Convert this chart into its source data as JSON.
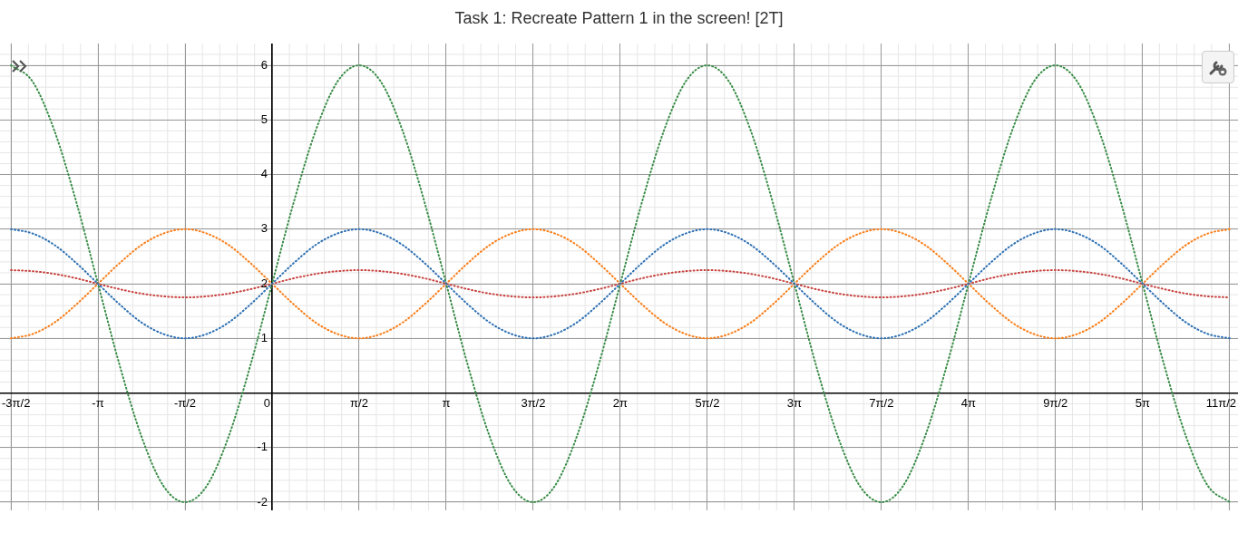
{
  "chart_data": {
    "type": "line",
    "title": "Task 1: Recreate Pattern 1 in the screen! [2T]",
    "x": [
      -4.712,
      -4.32,
      -3.927,
      -3.534,
      -3.142,
      -2.749,
      -2.356,
      -1.963,
      -1.571,
      -1.178,
      -0.785,
      -0.393,
      0,
      0.393,
      0.785,
      1.178,
      1.571,
      1.963,
      2.356,
      2.749,
      3.142,
      3.534,
      3.927,
      4.32,
      4.712,
      5.105,
      5.498,
      5.89,
      6.283,
      6.676,
      7.069,
      7.461,
      7.854,
      8.247,
      8.639,
      9.032,
      9.425,
      9.817,
      10.21,
      10.603,
      10.996,
      11.388,
      11.781,
      12.174,
      12.566,
      12.959,
      13.352,
      13.744,
      14.137,
      14.53,
      14.923,
      15.315,
      15.708,
      16.101,
      16.493,
      16.886,
      17.279
    ],
    "series": [
      {
        "color": "#2d70b3",
        "values": [
          3,
          2.92,
          2.71,
          2.38,
          2,
          1.62,
          1.29,
          1.08,
          1,
          1.08,
          1.29,
          1.62,
          2,
          2.38,
          2.71,
          2.92,
          3,
          2.92,
          2.71,
          2.38,
          2,
          1.62,
          1.29,
          1.08,
          1,
          1.08,
          1.29,
          1.62,
          2,
          2.38,
          2.71,
          2.92,
          3,
          2.92,
          2.71,
          2.38,
          2,
          1.62,
          1.29,
          1.08,
          1,
          1.08,
          1.29,
          1.62,
          2,
          2.38,
          2.71,
          2.92,
          3,
          2.92,
          2.71,
          2.38,
          2,
          1.62,
          1.29,
          1.08,
          1
        ]
      },
      {
        "color": "#fa7e19",
        "values": [
          1,
          1.08,
          1.29,
          1.62,
          2,
          2.38,
          2.71,
          2.92,
          3,
          2.92,
          2.71,
          2.38,
          2,
          1.62,
          1.29,
          1.08,
          1,
          1.08,
          1.29,
          1.62,
          2,
          2.38,
          2.71,
          2.92,
          3,
          2.92,
          2.71,
          2.38,
          2,
          1.62,
          1.29,
          1.08,
          1,
          1.08,
          1.29,
          1.62,
          2,
          2.38,
          2.71,
          2.92,
          3,
          2.92,
          2.71,
          2.38,
          2,
          1.62,
          1.29,
          1.08,
          1,
          1.08,
          1.29,
          1.62,
          2,
          2.38,
          2.71,
          2.92,
          3
        ]
      },
      {
        "color": "#388c46",
        "values": [
          6,
          5.7,
          4.8,
          3.5,
          2,
          0.5,
          -0.8,
          -1.7,
          -2,
          -1.7,
          -0.8,
          0.5,
          2,
          3.5,
          4.8,
          5.7,
          6,
          5.7,
          4.8,
          3.5,
          2,
          0.5,
          -0.8,
          -1.7,
          -2,
          -1.7,
          -0.8,
          0.5,
          2,
          3.5,
          4.8,
          5.7,
          6,
          5.7,
          4.8,
          3.5,
          2,
          0.5,
          -0.8,
          -1.7,
          -2,
          -1.7,
          -0.8,
          0.5,
          2,
          3.5,
          4.8,
          5.7,
          6,
          5.7,
          4.8,
          3.5,
          2,
          0.5,
          -0.8,
          -1.7,
          -2
        ]
      },
      {
        "color": "#c74440",
        "values": [
          2.25,
          2.23,
          2.18,
          2.1,
          2,
          1.9,
          1.82,
          1.77,
          1.75,
          1.77,
          1.82,
          1.9,
          2,
          2.1,
          2.18,
          2.23,
          2.25,
          2.23,
          2.18,
          2.1,
          2,
          1.9,
          1.82,
          1.77,
          1.75,
          1.77,
          1.82,
          1.9,
          2,
          2.1,
          2.18,
          2.23,
          2.25,
          2.23,
          2.18,
          2.1,
          2,
          1.9,
          1.82,
          1.77,
          1.75,
          1.77,
          1.82,
          1.9,
          2,
          2.1,
          2.18,
          2.23,
          2.25,
          2.23,
          2.18,
          2.1,
          2,
          1.9,
          1.82,
          1.77,
          1.75
        ]
      }
    ],
    "xlim": [
      -4.91,
      17.43
    ],
    "xticks": [
      {
        "value": -4.712,
        "label": "-3π/2"
      },
      {
        "value": -3.142,
        "label": "-π"
      },
      {
        "value": -1.571,
        "label": "-π/2"
      },
      0,
      {
        "value": 1.571,
        "label": "π/2"
      },
      {
        "value": 3.142,
        "label": "π"
      },
      {
        "value": 4.712,
        "label": "3π/2"
      },
      {
        "value": 6.283,
        "label": "2π"
      },
      {
        "value": 7.854,
        "label": "5π/2"
      },
      {
        "value": 9.425,
        "label": "3π"
      },
      {
        "value": 10.996,
        "label": "7π/2"
      },
      {
        "value": 12.566,
        "label": "4π"
      },
      {
        "value": 14.137,
        "label": "9π/2"
      },
      {
        "value": 15.708,
        "label": "5π"
      },
      {
        "value": 17.279,
        "label": "11π/2"
      }
    ],
    "ylim": [
      -2.15,
      6.4
    ],
    "yticks": [
      -2,
      -1,
      {
        "value": 0,
        "label": null
      },
      1,
      2,
      3,
      4,
      5,
      6
    ],
    "grid": true,
    "legend": false,
    "marker": "none",
    "line_style": "dotted"
  }
}
